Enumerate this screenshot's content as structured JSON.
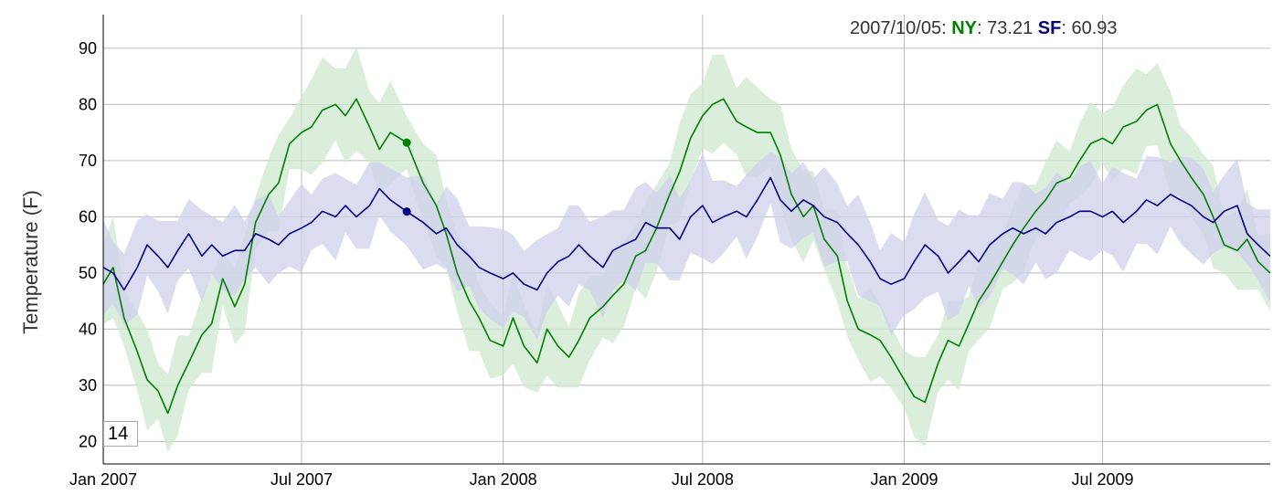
{
  "legend": {
    "date": "2007/10/05",
    "series": [
      {
        "name": "NY",
        "value": "73.21",
        "color": "#008000"
      },
      {
        "name": "SF",
        "value": "60.93",
        "color": "#000080"
      }
    ]
  },
  "roll_period": "14",
  "chart_data": {
    "type": "line",
    "title": "",
    "xlabel": "",
    "ylabel": "Temperature (F)",
    "x_ticks": [
      "Jan 2007",
      "Jul 2007",
      "Jan 2008",
      "Jul 2008",
      "Jan 2009",
      "Jul 2009"
    ],
    "y_ticks": [
      "20",
      "30",
      "40",
      "50",
      "60",
      "70",
      "80",
      "90"
    ],
    "xlim": [
      "2007-01-01",
      "2009-12-01"
    ],
    "ylim": [
      16,
      96
    ],
    "grid": true,
    "error_bands": true,
    "highlight": {
      "date": "2007-10-05",
      "values": {
        "NY": 73.21,
        "SF": 60.93
      }
    },
    "series": [
      {
        "name": "NY",
        "color": "#008000",
        "band_color": "#cfe8cf",
        "points": [
          [
            "2007-01-01",
            48
          ],
          [
            "2007-01-10",
            51
          ],
          [
            "2007-01-20",
            42
          ],
          [
            "2007-02-01",
            36
          ],
          [
            "2007-02-10",
            31
          ],
          [
            "2007-02-20",
            29
          ],
          [
            "2007-03-01",
            25
          ],
          [
            "2007-03-10",
            30
          ],
          [
            "2007-03-20",
            34
          ],
          [
            "2007-04-01",
            39
          ],
          [
            "2007-04-10",
            41
          ],
          [
            "2007-04-20",
            49
          ],
          [
            "2007-05-01",
            44
          ],
          [
            "2007-05-10",
            48
          ],
          [
            "2007-05-20",
            59
          ],
          [
            "2007-06-01",
            64
          ],
          [
            "2007-06-10",
            66
          ],
          [
            "2007-06-20",
            73
          ],
          [
            "2007-07-01",
            75
          ],
          [
            "2007-07-10",
            76
          ],
          [
            "2007-07-20",
            79
          ],
          [
            "2007-08-01",
            80
          ],
          [
            "2007-08-10",
            78
          ],
          [
            "2007-08-20",
            81
          ],
          [
            "2007-09-01",
            76
          ],
          [
            "2007-09-10",
            72
          ],
          [
            "2007-09-20",
            75
          ],
          [
            "2007-10-05",
            73.21
          ],
          [
            "2007-10-20",
            66
          ],
          [
            "2007-11-01",
            62
          ],
          [
            "2007-11-10",
            57
          ],
          [
            "2007-11-20",
            50
          ],
          [
            "2007-12-01",
            45
          ],
          [
            "2007-12-10",
            42
          ],
          [
            "2007-12-20",
            38
          ],
          [
            "2008-01-01",
            37
          ],
          [
            "2008-01-10",
            42
          ],
          [
            "2008-01-20",
            37
          ],
          [
            "2008-02-01",
            34
          ],
          [
            "2008-02-10",
            40
          ],
          [
            "2008-02-20",
            37
          ],
          [
            "2008-03-01",
            35
          ],
          [
            "2008-03-10",
            38
          ],
          [
            "2008-03-20",
            42
          ],
          [
            "2008-04-01",
            44
          ],
          [
            "2008-04-10",
            46
          ],
          [
            "2008-04-20",
            48
          ],
          [
            "2008-05-01",
            53
          ],
          [
            "2008-05-10",
            54
          ],
          [
            "2008-05-20",
            58
          ],
          [
            "2008-06-01",
            64
          ],
          [
            "2008-06-10",
            68
          ],
          [
            "2008-06-20",
            74
          ],
          [
            "2008-07-01",
            78
          ],
          [
            "2008-07-10",
            80
          ],
          [
            "2008-07-20",
            81
          ],
          [
            "2008-08-01",
            77
          ],
          [
            "2008-08-10",
            76
          ],
          [
            "2008-08-20",
            75
          ],
          [
            "2008-09-01",
            75
          ],
          [
            "2008-09-10",
            71
          ],
          [
            "2008-09-20",
            64
          ],
          [
            "2008-10-01",
            60
          ],
          [
            "2008-10-10",
            62
          ],
          [
            "2008-10-20",
            56
          ],
          [
            "2008-11-01",
            53
          ],
          [
            "2008-11-10",
            45
          ],
          [
            "2008-11-20",
            40
          ],
          [
            "2008-12-01",
            39
          ],
          [
            "2008-12-10",
            38
          ],
          [
            "2008-12-20",
            35
          ],
          [
            "2009-01-01",
            31
          ],
          [
            "2009-01-10",
            28
          ],
          [
            "2009-01-20",
            27
          ],
          [
            "2009-02-01",
            34
          ],
          [
            "2009-02-10",
            38
          ],
          [
            "2009-02-20",
            37
          ],
          [
            "2009-03-01",
            41
          ],
          [
            "2009-03-10",
            45
          ],
          [
            "2009-03-20",
            48
          ],
          [
            "2009-04-01",
            52
          ],
          [
            "2009-04-10",
            55
          ],
          [
            "2009-04-20",
            58
          ],
          [
            "2009-05-01",
            61
          ],
          [
            "2009-05-10",
            63
          ],
          [
            "2009-05-20",
            66
          ],
          [
            "2009-06-01",
            67
          ],
          [
            "2009-06-10",
            70
          ],
          [
            "2009-06-20",
            73
          ],
          [
            "2009-07-01",
            74
          ],
          [
            "2009-07-10",
            73
          ],
          [
            "2009-07-20",
            76
          ],
          [
            "2009-08-01",
            77
          ],
          [
            "2009-08-10",
            79
          ],
          [
            "2009-08-20",
            80
          ],
          [
            "2009-09-01",
            73
          ],
          [
            "2009-09-10",
            70
          ],
          [
            "2009-09-20",
            67
          ],
          [
            "2009-10-01",
            64
          ],
          [
            "2009-10-10",
            60
          ],
          [
            "2009-10-20",
            55
          ],
          [
            "2009-11-01",
            54
          ],
          [
            "2009-11-10",
            56
          ],
          [
            "2009-11-20",
            52
          ],
          [
            "2009-12-01",
            50
          ]
        ]
      },
      {
        "name": "SF",
        "color": "#000080",
        "band_color": "#d0d0ec",
        "points": [
          [
            "2007-01-01",
            51
          ],
          [
            "2007-01-10",
            50
          ],
          [
            "2007-01-20",
            47
          ],
          [
            "2007-02-01",
            51
          ],
          [
            "2007-02-10",
            55
          ],
          [
            "2007-02-20",
            53
          ],
          [
            "2007-03-01",
            51
          ],
          [
            "2007-03-10",
            54
          ],
          [
            "2007-03-20",
            57
          ],
          [
            "2007-04-01",
            53
          ],
          [
            "2007-04-10",
            55
          ],
          [
            "2007-04-20",
            53
          ],
          [
            "2007-05-01",
            54
          ],
          [
            "2007-05-10",
            54
          ],
          [
            "2007-05-20",
            57
          ],
          [
            "2007-06-01",
            56
          ],
          [
            "2007-06-10",
            55
          ],
          [
            "2007-06-20",
            57
          ],
          [
            "2007-07-01",
            58
          ],
          [
            "2007-07-10",
            59
          ],
          [
            "2007-07-20",
            61
          ],
          [
            "2007-08-01",
            60
          ],
          [
            "2007-08-10",
            62
          ],
          [
            "2007-08-20",
            60
          ],
          [
            "2007-09-01",
            62
          ],
          [
            "2007-09-10",
            65
          ],
          [
            "2007-09-20",
            63
          ],
          [
            "2007-10-05",
            60.93
          ],
          [
            "2007-10-20",
            59
          ],
          [
            "2007-11-01",
            57
          ],
          [
            "2007-11-10",
            58
          ],
          [
            "2007-11-20",
            55
          ],
          [
            "2007-12-01",
            53
          ],
          [
            "2007-12-10",
            51
          ],
          [
            "2007-12-20",
            50
          ],
          [
            "2008-01-01",
            49
          ],
          [
            "2008-01-10",
            50
          ],
          [
            "2008-01-20",
            48
          ],
          [
            "2008-02-01",
            47
          ],
          [
            "2008-02-10",
            50
          ],
          [
            "2008-02-20",
            52
          ],
          [
            "2008-03-01",
            53
          ],
          [
            "2008-03-10",
            55
          ],
          [
            "2008-03-20",
            53
          ],
          [
            "2008-04-01",
            51
          ],
          [
            "2008-04-10",
            54
          ],
          [
            "2008-04-20",
            55
          ],
          [
            "2008-05-01",
            56
          ],
          [
            "2008-05-10",
            59
          ],
          [
            "2008-05-20",
            58
          ],
          [
            "2008-06-01",
            58
          ],
          [
            "2008-06-10",
            56
          ],
          [
            "2008-06-20",
            60
          ],
          [
            "2008-07-01",
            62
          ],
          [
            "2008-07-10",
            59
          ],
          [
            "2008-07-20",
            60
          ],
          [
            "2008-08-01",
            61
          ],
          [
            "2008-08-10",
            60
          ],
          [
            "2008-08-20",
            63
          ],
          [
            "2008-09-01",
            67
          ],
          [
            "2008-09-10",
            63
          ],
          [
            "2008-09-20",
            61
          ],
          [
            "2008-10-01",
            63
          ],
          [
            "2008-10-10",
            62
          ],
          [
            "2008-10-20",
            60
          ],
          [
            "2008-11-01",
            59
          ],
          [
            "2008-11-10",
            57
          ],
          [
            "2008-11-20",
            55
          ],
          [
            "2008-12-01",
            52
          ],
          [
            "2008-12-10",
            49
          ],
          [
            "2008-12-20",
            48
          ],
          [
            "2009-01-01",
            49
          ],
          [
            "2009-01-10",
            52
          ],
          [
            "2009-01-20",
            55
          ],
          [
            "2009-02-01",
            53
          ],
          [
            "2009-02-10",
            50
          ],
          [
            "2009-02-20",
            52
          ],
          [
            "2009-03-01",
            54
          ],
          [
            "2009-03-10",
            52
          ],
          [
            "2009-03-20",
            55
          ],
          [
            "2009-04-01",
            57
          ],
          [
            "2009-04-10",
            58
          ],
          [
            "2009-04-20",
            57
          ],
          [
            "2009-05-01",
            58
          ],
          [
            "2009-05-10",
            57
          ],
          [
            "2009-05-20",
            59
          ],
          [
            "2009-06-01",
            60
          ],
          [
            "2009-06-10",
            61
          ],
          [
            "2009-06-20",
            61
          ],
          [
            "2009-07-01",
            60
          ],
          [
            "2009-07-10",
            61
          ],
          [
            "2009-07-20",
            59
          ],
          [
            "2009-08-01",
            61
          ],
          [
            "2009-08-10",
            63
          ],
          [
            "2009-08-20",
            62
          ],
          [
            "2009-09-01",
            64
          ],
          [
            "2009-09-10",
            63
          ],
          [
            "2009-09-20",
            62
          ],
          [
            "2009-10-01",
            60
          ],
          [
            "2009-10-10",
            59
          ],
          [
            "2009-10-20",
            61
          ],
          [
            "2009-11-01",
            62
          ],
          [
            "2009-11-10",
            57
          ],
          [
            "2009-11-20",
            55
          ],
          [
            "2009-12-01",
            53
          ]
        ]
      }
    ]
  }
}
